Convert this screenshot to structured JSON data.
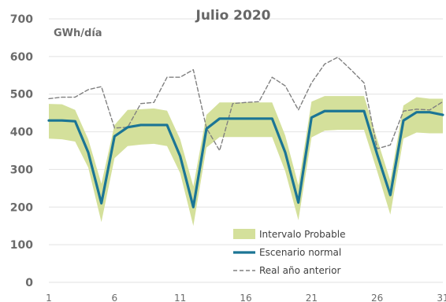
{
  "chart_data": {
    "type": "line",
    "title": "Julio 2020",
    "unit_label": "GWh/día",
    "xlabel": "",
    "ylabel": "",
    "x": [
      1,
      2,
      3,
      4,
      5,
      6,
      7,
      8,
      9,
      10,
      11,
      12,
      13,
      14,
      15,
      16,
      17,
      18,
      19,
      20,
      21,
      22,
      23,
      24,
      25,
      26,
      27,
      28,
      29,
      30,
      31
    ],
    "x_ticks": [
      "1",
      "6",
      "11",
      "16",
      "21",
      "26",
      "31"
    ],
    "y_ticks": [
      "0",
      "100",
      "200",
      "300",
      "400",
      "500",
      "600",
      "700"
    ],
    "ylim": [
      0,
      700
    ],
    "grid": true,
    "legend_position": "bottom-right",
    "band": {
      "name": "Intervalo Probable",
      "color": "#d4e09b",
      "upper": [
        474,
        473,
        458,
        380,
        262,
        418,
        458,
        460,
        462,
        456,
        380,
        255,
        445,
        478,
        478,
        478,
        478,
        478,
        390,
        258,
        480,
        495,
        495,
        495,
        495,
        380,
        270,
        470,
        492,
        488,
        488
      ],
      "lower": [
        382,
        380,
        374,
        305,
        160,
        330,
        362,
        366,
        368,
        362,
        290,
        150,
        358,
        386,
        386,
        386,
        386,
        386,
        295,
        165,
        385,
        403,
        405,
        405,
        405,
        295,
        180,
        382,
        398,
        396,
        396
      ]
    },
    "series": [
      {
        "name": "Escenario normal",
        "color": "#1b7595",
        "style": "solid",
        "values": [
          430,
          430,
          428,
          345,
          210,
          388,
          412,
          418,
          418,
          418,
          335,
          200,
          408,
          435,
          435,
          435,
          435,
          435,
          345,
          212,
          438,
          455,
          455,
          455,
          455,
          340,
          232,
          430,
          452,
          452,
          445
        ]
      },
      {
        "name": "Real año anterior",
        "color": "#808080",
        "style": "dashed",
        "values": [
          488,
          492,
          492,
          512,
          520,
          410,
          412,
          475,
          478,
          545,
          545,
          565,
          410,
          350,
          475,
          478,
          480,
          545,
          522,
          458,
          530,
          580,
          598,
          565,
          530,
          355,
          365,
          455,
          460,
          458,
          480
        ]
      }
    ]
  }
}
